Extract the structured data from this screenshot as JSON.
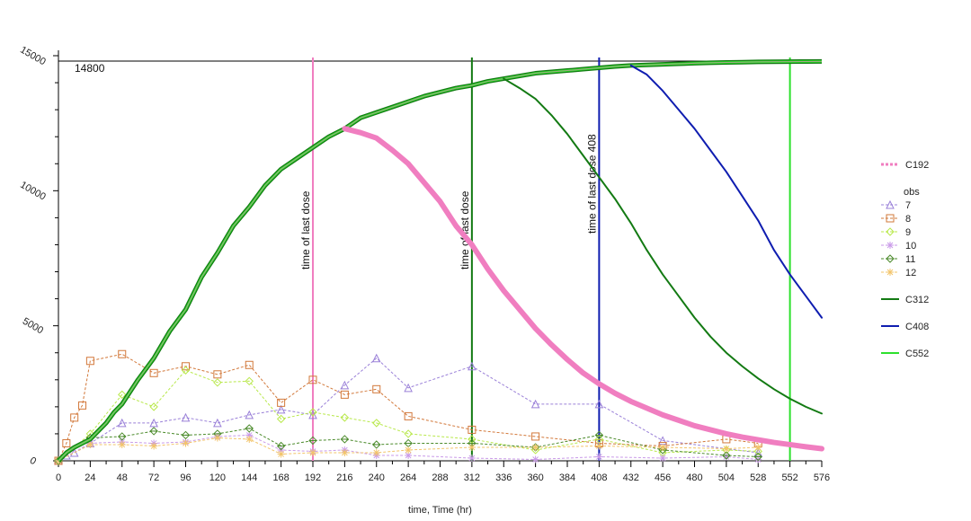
{
  "chart_data": {
    "type": "line",
    "xlabel": "time, Time (hr)",
    "xlim": [
      0,
      576
    ],
    "ylim": [
      0,
      15000
    ],
    "xticks": [
      0,
      24,
      48,
      72,
      96,
      120,
      144,
      168,
      192,
      216,
      240,
      264,
      288,
      312,
      336,
      360,
      384,
      408,
      432,
      456,
      480,
      504,
      528,
      552,
      576
    ],
    "yticks": [
      0,
      5000,
      10000,
      15000
    ],
    "grid": false,
    "legend_position": "right",
    "ceiling_label": "14800",
    "ceiling_value": 14800,
    "legend_obs_title": "obs",
    "colors": {
      "C192": "#f07ec0",
      "C312": "#137a13",
      "C408": "#0f1db0",
      "C552": "#2de02d",
      "obs7": "#9a80d8",
      "obs8": "#d2783a",
      "obs9": "#b8e84a",
      "obs10": "#c99ae8",
      "obs11": "#4a8a2a",
      "obs12": "#f2c46a"
    },
    "vlines": [
      {
        "x": 192,
        "label": "time of last dose",
        "color": "#f07ec0"
      },
      {
        "x": 312,
        "label": "time of last dose",
        "color": "#137a13"
      },
      {
        "x": 408,
        "label": "time of last dose 408",
        "color": "#0f1db0"
      },
      {
        "x": 552,
        "label": "",
        "color": "#2de02d"
      }
    ],
    "curves": [
      {
        "name": "C552",
        "x": [
          0,
          6,
          12,
          18,
          24,
          30,
          36,
          42,
          48,
          60,
          72,
          84,
          96,
          108,
          120,
          132,
          144,
          156,
          168,
          180,
          192,
          204,
          216,
          228,
          240,
          252,
          264,
          276,
          288,
          300,
          312,
          324,
          336,
          348,
          360,
          372,
          384,
          396,
          408,
          420,
          432,
          444,
          456,
          468,
          480,
          492,
          504,
          516,
          528,
          540,
          552,
          564,
          576
        ],
        "y": [
          0,
          300,
          500,
          650,
          800,
          1100,
          1400,
          1800,
          2100,
          3000,
          3800,
          4800,
          5600,
          6800,
          7700,
          8700,
          9400,
          10200,
          10800,
          11200,
          11600,
          12000,
          12300,
          12700,
          12900,
          13100,
          13300,
          13500,
          13650,
          13800,
          13900,
          14050,
          14150,
          14250,
          14350,
          14400,
          14450,
          14500,
          14550,
          14600,
          14640,
          14660,
          14680,
          14700,
          14720,
          14740,
          14750,
          14760,
          14770,
          14775,
          14780,
          14785,
          14790
        ]
      },
      {
        "name": "C192",
        "x": [
          216,
          228,
          240,
          252,
          264,
          276,
          288,
          300,
          312,
          324,
          336,
          348,
          360,
          372,
          384,
          396,
          408,
          420,
          432,
          444,
          456,
          468,
          480,
          492,
          504,
          516,
          528,
          540,
          552,
          564,
          576
        ],
        "y": [
          12300,
          12150,
          11950,
          11500,
          11000,
          10300,
          9600,
          8700,
          8000,
          7100,
          6300,
          5600,
          4900,
          4300,
          3750,
          3250,
          2850,
          2500,
          2200,
          1950,
          1700,
          1500,
          1300,
          1150,
          1000,
          880,
          780,
          680,
          600,
          520,
          450
        ]
      },
      {
        "name": "C312",
        "x": [
          336,
          348,
          360,
          372,
          384,
          396,
          408,
          420,
          432,
          444,
          456,
          468,
          480,
          492,
          504,
          516,
          528,
          540,
          552,
          564,
          576
        ],
        "y": [
          14150,
          13800,
          13400,
          12800,
          12100,
          11300,
          10500,
          9700,
          8800,
          7800,
          6900,
          6100,
          5300,
          4600,
          4000,
          3500,
          3050,
          2650,
          2300,
          2000,
          1750
        ]
      },
      {
        "name": "C408",
        "x": [
          432,
          444,
          456,
          468,
          480,
          492,
          504,
          516,
          528,
          540,
          552,
          564,
          576
        ],
        "y": [
          14640,
          14300,
          13700,
          13000,
          12300,
          11500,
          10700,
          9800,
          8900,
          7800,
          6900,
          6100,
          5300
        ]
      }
    ],
    "series": [
      {
        "name": "7",
        "marker": "triangle",
        "x": [
          0,
          6,
          12,
          24,
          48,
          72,
          96,
          120,
          144,
          168,
          192,
          216,
          240,
          264,
          312,
          360,
          408,
          456,
          528
        ],
        "y": [
          0,
          200,
          300,
          650,
          1400,
          1400,
          1600,
          1400,
          1700,
          1900,
          1700,
          2800,
          3800,
          2700,
          3500,
          2100,
          2100,
          750,
          300
        ]
      },
      {
        "name": "8",
        "marker": "square",
        "x": [
          0,
          6,
          12,
          18,
          24,
          48,
          72,
          96,
          120,
          144,
          168,
          192,
          216,
          240,
          264,
          312,
          360,
          408,
          456,
          504,
          528
        ],
        "y": [
          0,
          650,
          1600,
          2050,
          3700,
          3950,
          3250,
          3500,
          3200,
          3550,
          2150,
          3000,
          2450,
          2650,
          1650,
          1150,
          900,
          650,
          550,
          800,
          650
        ]
      },
      {
        "name": "9",
        "marker": "diamond",
        "x": [
          0,
          24,
          48,
          72,
          96,
          120,
          144,
          168,
          192,
          216,
          240,
          264,
          312,
          360,
          408,
          456,
          504,
          528
        ],
        "y": [
          0,
          1000,
          2450,
          2000,
          3350,
          2900,
          2950,
          1550,
          1800,
          1600,
          1400,
          1000,
          800,
          400,
          800,
          300,
          400,
          350
        ]
      },
      {
        "name": "10",
        "marker": "star",
        "x": [
          0,
          24,
          48,
          72,
          96,
          120,
          144,
          168,
          192,
          216,
          240,
          264,
          312,
          360,
          408,
          456,
          504,
          528
        ],
        "y": [
          0,
          650,
          700,
          650,
          700,
          900,
          950,
          400,
          350,
          400,
          200,
          200,
          100,
          50,
          150,
          100,
          150,
          50
        ]
      },
      {
        "name": "11",
        "marker": "plus-diamond",
        "x": [
          0,
          24,
          48,
          72,
          96,
          120,
          144,
          168,
          192,
          216,
          240,
          264,
          312,
          360,
          408,
          456,
          504,
          528
        ],
        "y": [
          0,
          850,
          900,
          1100,
          950,
          1000,
          1200,
          550,
          750,
          800,
          600,
          650,
          650,
          500,
          950,
          400,
          200,
          150
        ]
      },
      {
        "name": "12",
        "marker": "star",
        "x": [
          0,
          24,
          48,
          72,
          96,
          120,
          144,
          168,
          192,
          216,
          240,
          264,
          312,
          360,
          408,
          456,
          504,
          528
        ],
        "y": [
          0,
          600,
          600,
          550,
          650,
          850,
          800,
          250,
          300,
          300,
          300,
          400,
          500,
          500,
          550,
          500,
          450,
          500
        ]
      }
    ],
    "legend": [
      {
        "key": "C192",
        "label": "C192",
        "kind": "dotted"
      },
      {
        "key": "obs_title",
        "label": "obs",
        "kind": "title"
      },
      {
        "key": "7",
        "label": "7",
        "kind": "triangle"
      },
      {
        "key": "8",
        "label": "8",
        "kind": "square"
      },
      {
        "key": "9",
        "label": "9",
        "kind": "diamond"
      },
      {
        "key": "10",
        "label": "10",
        "kind": "star"
      },
      {
        "key": "11",
        "label": "11",
        "kind": "plus-diamond"
      },
      {
        "key": "12",
        "label": "12",
        "kind": "star"
      },
      {
        "key": "C312",
        "label": "C312",
        "kind": "line"
      },
      {
        "key": "C408",
        "label": "C408",
        "kind": "line"
      },
      {
        "key": "C552",
        "label": "C552",
        "kind": "line"
      }
    ]
  }
}
